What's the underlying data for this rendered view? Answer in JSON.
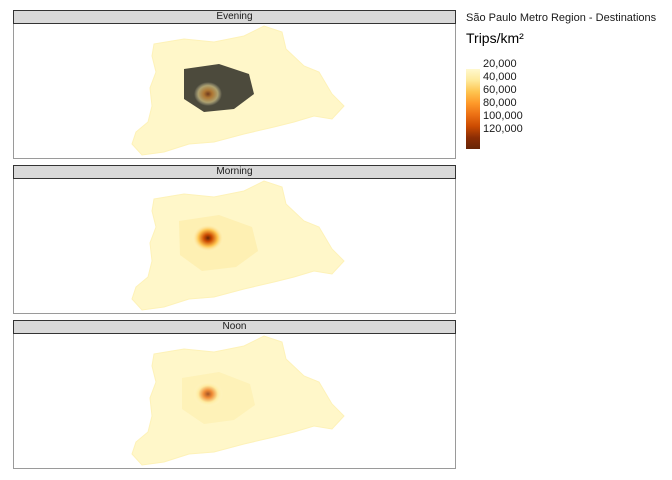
{
  "facets": [
    {
      "label": "Evening",
      "center_intensity": 0.55
    },
    {
      "label": "Morning",
      "center_intensity": 1.0
    },
    {
      "label": "Noon",
      "center_intensity": 0.8
    }
  ],
  "legend": {
    "title": "São Paulo Metro Region - Destinations",
    "fill_title": "Trips/km²",
    "ticks": [
      "20,000",
      "40,000",
      "60,000",
      "80,000",
      "100,000",
      "120,000"
    ],
    "colors": [
      "#fff9cf",
      "#fee99a",
      "#fec44f",
      "#fe9929",
      "#ec7014",
      "#cc4c02",
      "#8c2d04",
      "#662506"
    ]
  }
}
